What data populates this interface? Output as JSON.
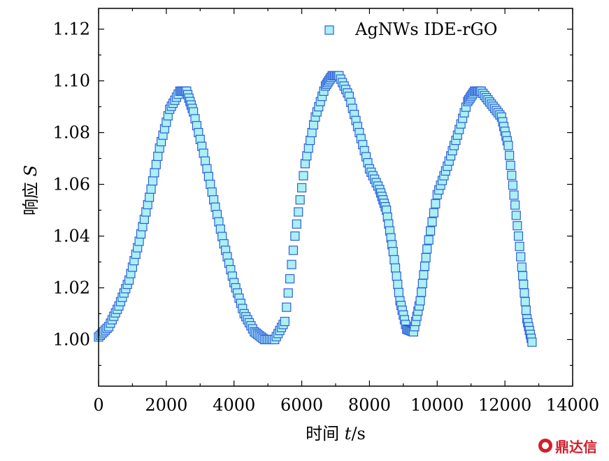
{
  "chart_data": {
    "type": "scatter",
    "xlabel_text": "时间 ",
    "xlabel_var": "t",
    "xlabel_unit": "/s",
    "ylabel_text": "响应 ",
    "ylabel_var": "S",
    "xlim": [
      0,
      14000
    ],
    "ylim": [
      0.982,
      1.128
    ],
    "xticks": [
      0,
      2000,
      4000,
      6000,
      8000,
      10000,
      12000,
      14000
    ],
    "xtick_labels": [
      "0",
      "2000",
      "4000",
      "6000",
      "8000",
      "10000",
      "12000",
      "14000"
    ],
    "yticks": [
      1.0,
      1.02,
      1.04,
      1.06,
      1.08,
      1.1,
      1.12
    ],
    "ytick_labels": [
      "1.00",
      "1.02",
      "1.04",
      "1.06",
      "1.08",
      "1.10",
      "1.12"
    ],
    "grid": false,
    "legend_position": "top-right",
    "series": [
      {
        "name": "AgNWs IDE-rGO",
        "marker": "square",
        "marker_fill": "#aaf0f5",
        "marker_edge": "#2f5fd8",
        "points": [
          [
            0,
            1.001
          ],
          [
            300,
            1.005
          ],
          [
            600,
            1.013
          ],
          [
            900,
            1.023
          ],
          [
            1200,
            1.038
          ],
          [
            1500,
            1.055
          ],
          [
            1800,
            1.074
          ],
          [
            2100,
            1.089
          ],
          [
            2400,
            1.096
          ],
          [
            2600,
            1.096
          ],
          [
            2800,
            1.088
          ],
          [
            3100,
            1.072
          ],
          [
            3400,
            1.054
          ],
          [
            3700,
            1.037
          ],
          [
            4000,
            1.022
          ],
          [
            4300,
            1.01
          ],
          [
            4600,
            1.003
          ],
          [
            4900,
            1.0
          ],
          [
            5200,
            1.0
          ],
          [
            5500,
            1.007
          ],
          [
            5800,
            1.04
          ],
          [
            6100,
            1.068
          ],
          [
            6400,
            1.086
          ],
          [
            6700,
            1.098
          ],
          [
            6900,
            1.102
          ],
          [
            7100,
            1.102
          ],
          [
            7400,
            1.094
          ],
          [
            7700,
            1.08
          ],
          [
            8000,
            1.066
          ],
          [
            8300,
            1.058
          ],
          [
            8500,
            1.05
          ],
          [
            8700,
            1.034
          ],
          [
            8900,
            1.015
          ],
          [
            9100,
            1.004
          ],
          [
            9300,
            1.003
          ],
          [
            9500,
            1.015
          ],
          [
            9700,
            1.035
          ],
          [
            10000,
            1.056
          ],
          [
            10300,
            1.067
          ],
          [
            10600,
            1.079
          ],
          [
            10900,
            1.092
          ],
          [
            11100,
            1.096
          ],
          [
            11300,
            1.096
          ],
          [
            11600,
            1.091
          ],
          [
            11900,
            1.086
          ],
          [
            12100,
            1.075
          ],
          [
            12300,
            1.052
          ],
          [
            12500,
            1.028
          ],
          [
            12650,
            1.008
          ],
          [
            12800,
            0.999
          ]
        ]
      }
    ]
  },
  "watermark": "鼎达信"
}
